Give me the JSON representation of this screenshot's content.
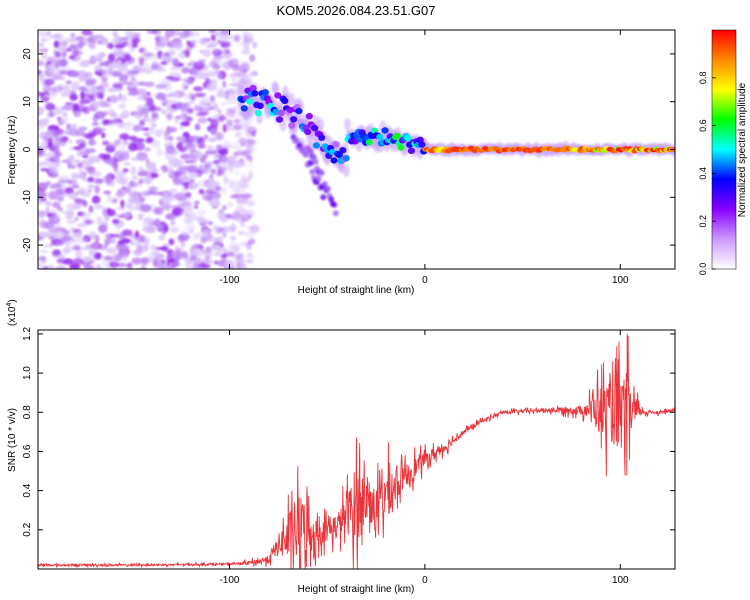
{
  "figure": {
    "title": "KOM5.2026.084.23.51.G07"
  },
  "chart_data": [
    {
      "type": "heatmap",
      "title": "KOM5.2026.084.23.51.G07",
      "xlabel": "Height of straight line (km)",
      "ylabel": "Frequency (Hz)",
      "xlim": [
        -198,
        128
      ],
      "ylim": [
        -25,
        25
      ],
      "x_ticks": [
        -100,
        0,
        100
      ],
      "x_tick_labels": [
        "-100",
        "0",
        "100"
      ],
      "y_ticks": [
        -20,
        -10,
        0,
        10,
        20
      ],
      "y_tick_labels": [
        "-20",
        "-10",
        "0",
        "10",
        "20"
      ],
      "colorbar": {
        "label": "Normalized spectral amplitude",
        "range": [
          0,
          1
        ],
        "ticks": [
          0.0,
          0.2,
          0.4,
          0.6,
          0.8
        ],
        "tick_labels": [
          "0.0",
          "0.2",
          "0.4",
          "0.6",
          "0.8"
        ],
        "colormap": [
          "#ffffff",
          "#cc99ff",
          "#8800ff",
          "#0000ff",
          "#00ffff",
          "#00ff00",
          "#ffff00",
          "#ff8800",
          "#ff0000"
        ]
      },
      "regions": [
        {
          "description_x": [
            -198,
            -95
          ],
          "freq_range": [
            -25,
            25
          ],
          "amplitude": 0.1
        },
        {
          "x": [
            -95,
            -75
          ],
          "freq_center": [
            11,
            10
          ],
          "amplitude": 0.35
        },
        {
          "x": [
            -75,
            -40
          ],
          "freq_center": [
            10,
            -3
          ],
          "amplitude": 0.3
        },
        {
          "x": [
            -40,
            0
          ],
          "freq_center": [
            3,
            1
          ],
          "amplitude": 0.45
        },
        {
          "x": [
            0,
            128
          ],
          "freq_center": [
            0,
            0
          ],
          "amplitude": 0.85
        }
      ]
    },
    {
      "type": "line",
      "xlabel": "Height of straight line (km)",
      "ylabel": "SNR (10 * v/v)",
      "scale_label": "(x10",
      "scale_exponent": "4",
      "scale_close": ")",
      "xlim": [
        -198,
        128
      ],
      "ylim": [
        0,
        1.22
      ],
      "x_ticks": [
        -100,
        0,
        100
      ],
      "x_tick_labels": [
        "-100",
        "0",
        "100"
      ],
      "y_ticks": [
        0.2,
        0.4,
        0.6,
        0.8,
        1.0,
        1.2
      ],
      "y_tick_labels": [
        "0.2",
        "0.4",
        "0.6",
        "0.8",
        "1.0",
        "1.2"
      ],
      "series": [
        {
          "name": "SNR",
          "color": "#e8343a",
          "x": [
            -198,
            -150,
            -100,
            -90,
            -80,
            -75,
            -65,
            -55,
            -50,
            -45,
            -40,
            -35,
            -30,
            -25,
            -20,
            -15,
            -10,
            -5,
            0,
            10,
            20,
            30,
            40,
            60,
            80,
            85,
            90,
            95,
            100,
            103,
            106,
            110,
            115,
            120,
            128
          ],
          "mean": [
            0.02,
            0.02,
            0.025,
            0.03,
            0.05,
            0.12,
            0.2,
            0.18,
            0.2,
            0.22,
            0.28,
            0.32,
            0.35,
            0.32,
            0.38,
            0.42,
            0.48,
            0.52,
            0.56,
            0.62,
            0.7,
            0.76,
            0.8,
            0.81,
            0.81,
            0.82,
            0.8,
            0.8,
            0.78,
            0.8,
            0.8,
            0.8,
            0.8,
            0.8,
            0.81
          ],
          "spread": [
            0.01,
            0.01,
            0.01,
            0.02,
            0.04,
            0.12,
            0.4,
            0.15,
            0.12,
            0.15,
            0.2,
            0.5,
            0.25,
            0.2,
            0.3,
            0.15,
            0.12,
            0.12,
            0.08,
            0.05,
            0.03,
            0.02,
            0.02,
            0.02,
            0.05,
            0.12,
            0.3,
            0.35,
            0.4,
            0.45,
            0.3,
            0.04,
            0.02,
            0.02,
            0.02
          ]
        }
      ]
    }
  ]
}
